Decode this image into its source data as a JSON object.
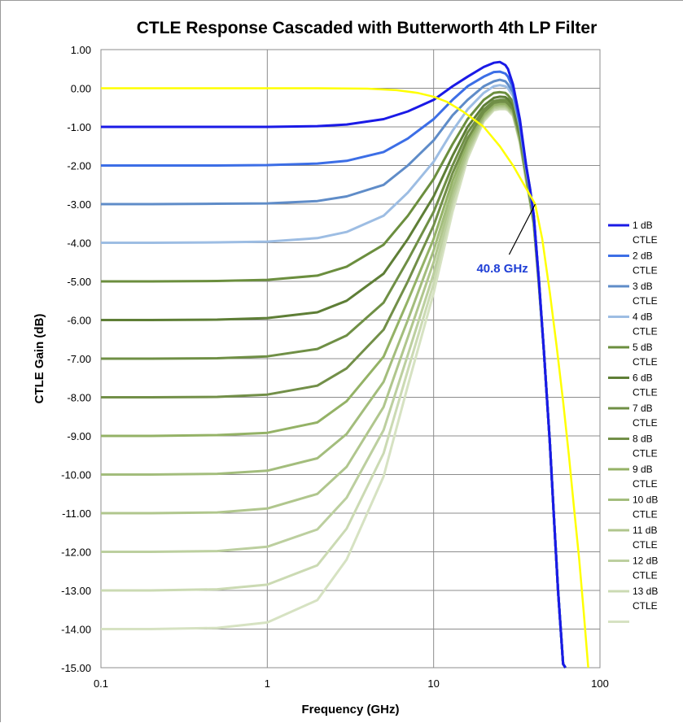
{
  "chart_data": {
    "type": "line",
    "title": "CTLE Response Cascaded with Butterworth 4th LP Filter",
    "xlabel": "Frequency (GHz)",
    "ylabel": "CTLE Gain (dB)",
    "x_scale": "log",
    "xlim": [
      0.1,
      100
    ],
    "ylim": [
      -15,
      1
    ],
    "x_ticks": [
      "0.1",
      "1",
      "10",
      "100"
    ],
    "x_tick_values": [
      0.1,
      1,
      10,
      100
    ],
    "y_ticks": [
      "1.00",
      "0.00",
      "-1.00",
      "-2.00",
      "-3.00",
      "-4.00",
      "-5.00",
      "-6.00",
      "-7.00",
      "-8.00",
      "-9.00",
      "-10.00",
      "-11.00",
      "-12.00",
      "-13.00",
      "-14.00",
      "-15.00"
    ],
    "y_tick_values": [
      1,
      0,
      -1,
      -2,
      -3,
      -4,
      -5,
      -6,
      -7,
      -8,
      -9,
      -10,
      -11,
      -12,
      -13,
      -14,
      -15
    ],
    "grid": true,
    "legend_position": "right",
    "x": [
      0.1,
      0.2,
      0.5,
      1,
      2,
      3,
      5,
      7,
      10,
      13,
      16,
      20,
      23,
      25,
      27,
      28,
      30,
      33,
      36,
      38,
      40,
      43,
      46,
      50,
      53,
      56,
      60,
      62
    ],
    "series": [
      {
        "name": "1 dB CTLE",
        "color": "#1a1ae6",
        "values": [
          -1.0,
          -1.0,
          -1.0,
          -1.0,
          -0.98,
          -0.94,
          -0.8,
          -0.6,
          -0.3,
          0.05,
          0.3,
          0.55,
          0.66,
          0.68,
          0.6,
          0.5,
          0.1,
          -0.8,
          -2.0,
          -2.6,
          -3.3,
          -5.0,
          -6.8,
          -9.2,
          -11.2,
          -13.0,
          -14.9,
          -15.0
        ]
      },
      {
        "name": "2 dB CTLE",
        "color": "#3c6ee6",
        "values": [
          -2.0,
          -2.0,
          -2.0,
          -1.99,
          -1.95,
          -1.88,
          -1.65,
          -1.3,
          -0.8,
          -0.3,
          0.05,
          0.3,
          0.42,
          0.43,
          0.38,
          0.3,
          0.0,
          -0.9,
          -2.0,
          -2.6,
          -3.3,
          -5.0,
          -6.8,
          -9.2,
          -11.2,
          -13.0,
          -14.9,
          -15.0
        ]
      },
      {
        "name": "3 dB CTLE",
        "color": "#5f8cc8",
        "values": [
          -3.0,
          -3.0,
          -2.99,
          -2.98,
          -2.92,
          -2.8,
          -2.5,
          -2.0,
          -1.35,
          -0.7,
          -0.3,
          0.05,
          0.18,
          0.22,
          0.18,
          0.1,
          -0.1,
          -0.95,
          -2.05,
          -2.65,
          -3.3,
          -5.0,
          -6.8,
          -9.2,
          -11.2,
          -13.0,
          -14.9,
          -15.0
        ]
      },
      {
        "name": "4 dB CTLE",
        "color": "#9dbde3",
        "values": [
          -4.0,
          -4.0,
          -3.99,
          -3.97,
          -3.88,
          -3.72,
          -3.3,
          -2.7,
          -1.9,
          -1.1,
          -0.55,
          -0.12,
          0.05,
          0.08,
          0.05,
          0.0,
          -0.2,
          -1.0,
          -2.1,
          -2.7,
          -3.35,
          -5.0,
          -6.8,
          -9.2,
          -11.2,
          -13.0,
          -14.9,
          -15.0
        ]
      },
      {
        "name": "5 dB CTLE",
        "color": "#6b8e3e",
        "values": [
          -5.0,
          -5.0,
          -4.99,
          -4.96,
          -4.85,
          -4.62,
          -4.05,
          -3.3,
          -2.35,
          -1.45,
          -0.8,
          -0.3,
          -0.12,
          -0.1,
          -0.12,
          -0.18,
          -0.35,
          -1.1,
          -2.15,
          -2.75,
          -3.4,
          -5.05,
          -6.8,
          -9.2,
          -11.2,
          -13.0,
          -14.9,
          -15.0
        ]
      },
      {
        "name": "6 dB CTLE",
        "color": "#5e7e36",
        "values": [
          -6.0,
          -6.0,
          -5.99,
          -5.95,
          -5.8,
          -5.5,
          -4.8,
          -3.9,
          -2.8,
          -1.75,
          -1.0,
          -0.45,
          -0.25,
          -0.22,
          -0.23,
          -0.28,
          -0.45,
          -1.15,
          -2.2,
          -2.8,
          -3.4,
          -5.05,
          -6.8,
          -9.2,
          -11.2,
          -13.0,
          -14.9,
          -15.0
        ]
      },
      {
        "name": "7 dB CTLE",
        "color": "#6f8f45",
        "values": [
          -7.0,
          -7.0,
          -6.99,
          -6.94,
          -6.75,
          -6.4,
          -5.55,
          -4.45,
          -3.2,
          -2.0,
          -1.15,
          -0.55,
          -0.33,
          -0.3,
          -0.3,
          -0.35,
          -0.5,
          -1.2,
          -2.2,
          -2.8,
          -3.45,
          -5.05,
          -6.8,
          -9.2,
          -11.2,
          -13.0,
          -14.9,
          -15.0
        ]
      },
      {
        "name": "8 dB CTLE",
        "color": "#728f48",
        "values": [
          -8.0,
          -8.0,
          -7.99,
          -7.93,
          -7.7,
          -7.25,
          -6.25,
          -5.0,
          -3.55,
          -2.2,
          -1.3,
          -0.62,
          -0.38,
          -0.35,
          -0.35,
          -0.4,
          -0.55,
          -1.25,
          -2.25,
          -2.85,
          -3.45,
          -5.05,
          -6.8,
          -9.2,
          -11.2,
          -13.0,
          -14.9,
          -15.0
        ]
      },
      {
        "name": "9 dB CTLE",
        "color": "#94b266",
        "values": [
          -9.0,
          -9.0,
          -8.98,
          -8.92,
          -8.65,
          -8.1,
          -6.95,
          -5.5,
          -3.9,
          -2.4,
          -1.4,
          -0.68,
          -0.43,
          -0.4,
          -0.4,
          -0.45,
          -0.6,
          -1.3,
          -2.3,
          -2.85,
          -3.5,
          -5.1,
          -6.8,
          -9.2,
          -11.2,
          -13.0,
          -14.9,
          -15.0
        ]
      },
      {
        "name": "10 dB CTLE",
        "color": "#a3bd7c",
        "values": [
          -10.0,
          -10.0,
          -9.98,
          -9.9,
          -9.58,
          -8.95,
          -7.6,
          -6.0,
          -4.2,
          -2.6,
          -1.5,
          -0.72,
          -0.46,
          -0.43,
          -0.43,
          -0.48,
          -0.63,
          -1.33,
          -2.3,
          -2.9,
          -3.5,
          -5.1,
          -6.8,
          -9.2,
          -11.2,
          -13.0,
          -14.9,
          -15.0
        ]
      },
      {
        "name": "11 dB CTLE",
        "color": "#b0c68d",
        "values": [
          -11.0,
          -11.0,
          -10.98,
          -10.88,
          -10.5,
          -9.8,
          -8.25,
          -6.45,
          -4.5,
          -2.75,
          -1.6,
          -0.76,
          -0.49,
          -0.46,
          -0.46,
          -0.5,
          -0.66,
          -1.35,
          -2.35,
          -2.9,
          -3.5,
          -5.1,
          -6.8,
          -9.2,
          -11.2,
          -13.0,
          -14.9,
          -15.0
        ]
      },
      {
        "name": "12 dB CTLE",
        "color": "#bccf9f",
        "values": [
          -12.0,
          -12.0,
          -11.98,
          -11.87,
          -11.42,
          -10.6,
          -8.85,
          -6.9,
          -4.8,
          -2.9,
          -1.68,
          -0.8,
          -0.52,
          -0.49,
          -0.49,
          -0.53,
          -0.68,
          -1.38,
          -2.35,
          -2.92,
          -3.52,
          -5.1,
          -6.8,
          -9.2,
          -11.2,
          -13.0,
          -14.9,
          -15.0
        ]
      },
      {
        "name": "13 dB CTLE",
        "color": "#cbdab3",
        "values": [
          -13.0,
          -13.0,
          -12.97,
          -12.85,
          -12.35,
          -11.4,
          -9.45,
          -7.3,
          -5.05,
          -3.05,
          -1.75,
          -0.83,
          -0.55,
          -0.52,
          -0.52,
          -0.55,
          -0.7,
          -1.4,
          -2.38,
          -2.95,
          -3.55,
          -5.15,
          -6.8,
          -9.2,
          -11.2,
          -13.0,
          -14.9,
          -15.0
        ]
      },
      {
        "name": "",
        "color": "#d6e2c2",
        "values": [
          -14.0,
          -14.0,
          -13.97,
          -13.83,
          -13.25,
          -12.2,
          -10.05,
          -7.7,
          -5.3,
          -3.2,
          -1.82,
          -0.86,
          -0.57,
          -0.54,
          -0.54,
          -0.57,
          -0.72,
          -1.42,
          -2.4,
          -2.97,
          -3.55,
          -5.15,
          -6.8,
          -9.2,
          -11.2,
          -13.0,
          -14.9,
          -15.0
        ]
      }
    ],
    "lp_filter": {
      "color": "#ffff00",
      "x": [
        0.1,
        0.5,
        1,
        2,
        4,
        6,
        8,
        10,
        12,
        15,
        18,
        20,
        25,
        30,
        35,
        40.8,
        45,
        50,
        55,
        60,
        65,
        70,
        75,
        80,
        85
      ],
      "values": [
        0.0,
        0.0,
        0.0,
        0.0,
        -0.01,
        -0.05,
        -0.12,
        -0.22,
        -0.35,
        -0.6,
        -0.85,
        -1.0,
        -1.5,
        -2.0,
        -2.5,
        -3.0,
        -3.9,
        -5.3,
        -6.7,
        -8.1,
        -9.5,
        -10.9,
        -12.2,
        -13.6,
        -15.0
      ]
    },
    "annotation": {
      "text": "40.8 GHz",
      "x": 40.8,
      "y": -3.0,
      "color": "#1f3fd6"
    }
  }
}
